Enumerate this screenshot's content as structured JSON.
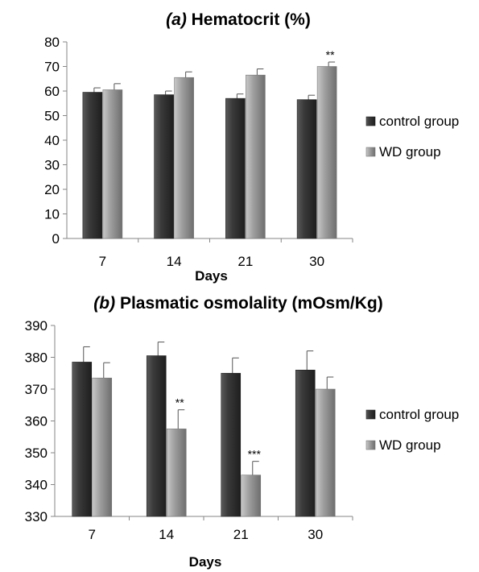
{
  "chart_data": [
    {
      "type": "bar",
      "title_prefix": "(a)",
      "title_main": "Hematocrit (%)",
      "xlabel": "Days",
      "ylabel": "",
      "ylim": [
        0,
        80
      ],
      "yticks": [
        0,
        10,
        20,
        30,
        40,
        50,
        60,
        70,
        80
      ],
      "categories": [
        "7",
        "14",
        "21",
        "30"
      ],
      "series": [
        {
          "name": "control group",
          "values": [
            59.5,
            58.5,
            57,
            56.5
          ],
          "errors": [
            1.8,
            1.5,
            1.8,
            1.8
          ],
          "color": "#3a3a3a"
        },
        {
          "name": "WD group",
          "values": [
            60.5,
            65.5,
            66.5,
            70
          ],
          "errors": [
            2.5,
            2.3,
            2.5,
            1.8
          ],
          "color": "#9a9a9a"
        }
      ],
      "annotations": [
        {
          "series": 1,
          "index": 3,
          "text": "**"
        }
      ],
      "legend_position": "right"
    },
    {
      "type": "bar",
      "title_prefix": "(b)",
      "title_main": "Plasmatic osmolality (mOsm/Kg)",
      "xlabel": "Days",
      "ylabel": "",
      "ylim": [
        330,
        390
      ],
      "yticks": [
        330,
        340,
        350,
        360,
        370,
        380,
        390
      ],
      "categories": [
        "7",
        "14",
        "21",
        "30"
      ],
      "series": [
        {
          "name": "control group",
          "values": [
            378.5,
            380.5,
            375,
            376
          ],
          "errors": [
            4.8,
            4.3,
            4.8,
            6
          ],
          "color": "#3a3a3a"
        },
        {
          "name": "WD group",
          "values": [
            373.5,
            357.5,
            343,
            370
          ],
          "errors": [
            4.8,
            6,
            4.3,
            3.8
          ],
          "color": "#9a9a9a"
        }
      ],
      "annotations": [
        {
          "series": 1,
          "index": 1,
          "text": "**"
        },
        {
          "series": 1,
          "index": 2,
          "text": "***"
        }
      ],
      "legend_position": "right"
    }
  ]
}
